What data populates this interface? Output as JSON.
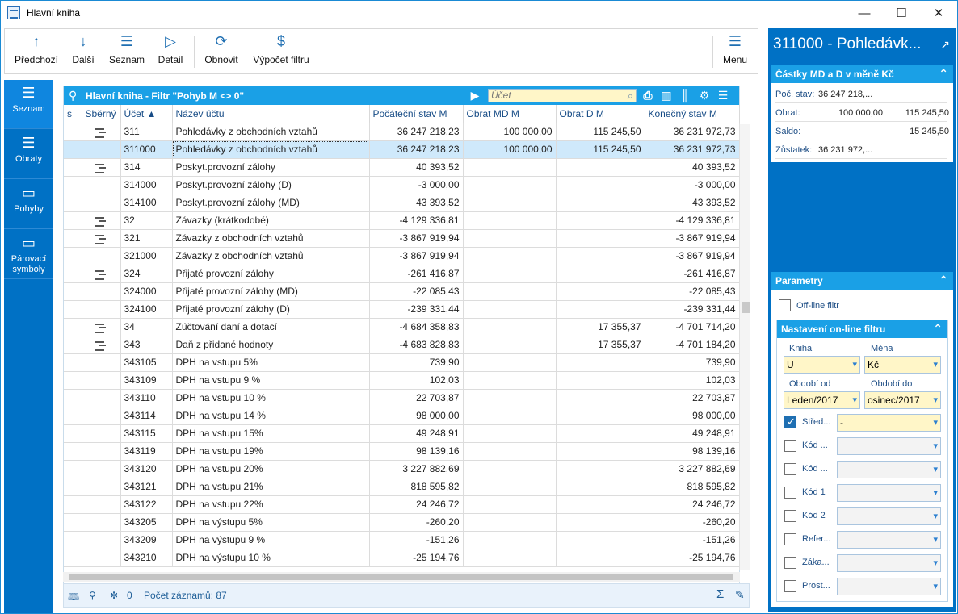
{
  "window": {
    "title": "Hlavní kniha",
    "minimize_icon": "minimize-icon",
    "maximize_icon": "maximize-icon",
    "close_icon": "close-icon"
  },
  "toolbar": {
    "items": [
      {
        "label": "Předchozí",
        "icon": "arrow-up-icon"
      },
      {
        "label": "Další",
        "icon": "arrow-down-icon"
      },
      {
        "label": "Seznam",
        "icon": "list-icon"
      },
      {
        "label": "Detail",
        "icon": "play-icon"
      },
      {
        "label": "Obnovit",
        "icon": "refresh-icon"
      },
      {
        "label": "Výpočet filtru",
        "icon": "calc-filter-icon"
      },
      {
        "label": "Menu",
        "icon": "menu-icon"
      }
    ]
  },
  "sidebar": {
    "items": [
      {
        "label": "Seznam",
        "icon": "list-icon"
      },
      {
        "label": "Obraty",
        "icon": "list-icon"
      },
      {
        "label": "Pohyby",
        "icon": "box-icon"
      },
      {
        "label": "Párovací symboly",
        "icon": "box-icon"
      }
    ]
  },
  "grid": {
    "title": "Hlavní kniha - Filtr \"Pohyb M <> 0\"",
    "search_placeholder": "Účet",
    "columns": [
      "s",
      "Sběrný",
      "Účet",
      "Název účtu",
      "Počáteční stav M",
      "Obrat MD M",
      "Obrat D M",
      "Konečný stav M"
    ],
    "rows": [
      {
        "s": "",
        "group": true,
        "ucet": "311",
        "nazev": "Pohledávky z obchodních vztahů",
        "poc": "36 247 218,23",
        "md": "100 000,00",
        "d": "115 245,50",
        "kon": "36 231 972,73"
      },
      {
        "s": "",
        "group": false,
        "ucet": "311000",
        "nazev": "Pohledávky z obchodních vztahů",
        "poc": "36 247 218,23",
        "md": "100 000,00",
        "d": "115 245,50",
        "kon": "36 231 972,73",
        "selected": true
      },
      {
        "s": "",
        "group": true,
        "ucet": "314",
        "nazev": "Poskyt.provozní zálohy",
        "poc": "40 393,52",
        "md": "",
        "d": "",
        "kon": "40 393,52"
      },
      {
        "s": "",
        "group": false,
        "ucet": "314000",
        "nazev": "Poskyt.provozní zálohy (D)",
        "poc": "-3 000,00",
        "md": "",
        "d": "",
        "kon": "-3 000,00"
      },
      {
        "s": "",
        "group": false,
        "ucet": "314100",
        "nazev": "Poskyt.provozní zálohy (MD)",
        "poc": "43 393,52",
        "md": "",
        "d": "",
        "kon": "43 393,52"
      },
      {
        "s": "",
        "group": true,
        "ucet": "32",
        "nazev": "Závazky (krátkodobé)",
        "poc": "-4 129 336,81",
        "md": "",
        "d": "",
        "kon": "-4 129 336,81"
      },
      {
        "s": "",
        "group": true,
        "ucet": "321",
        "nazev": "Závazky z obchodních vztahů",
        "poc": "-3 867 919,94",
        "md": "",
        "d": "",
        "kon": "-3 867 919,94"
      },
      {
        "s": "",
        "group": false,
        "ucet": "321000",
        "nazev": "Závazky z obchodních vztahů",
        "poc": "-3 867 919,94",
        "md": "",
        "d": "",
        "kon": "-3 867 919,94"
      },
      {
        "s": "",
        "group": true,
        "ucet": "324",
        "nazev": "Přijaté provozní zálohy",
        "poc": "-261 416,87",
        "md": "",
        "d": "",
        "kon": "-261 416,87"
      },
      {
        "s": "",
        "group": false,
        "ucet": "324000",
        "nazev": "Přijaté provozní zálohy (MD)",
        "poc": "-22 085,43",
        "md": "",
        "d": "",
        "kon": "-22 085,43"
      },
      {
        "s": "",
        "group": false,
        "ucet": "324100",
        "nazev": "Přijaté provozní zálohy (D)",
        "poc": "-239 331,44",
        "md": "",
        "d": "",
        "kon": "-239 331,44"
      },
      {
        "s": "",
        "group": true,
        "ucet": "34",
        "nazev": "Zúčtování daní a dotací",
        "poc": "-4 684 358,83",
        "md": "",
        "d": "17 355,37",
        "kon": "-4 701 714,20"
      },
      {
        "s": "",
        "group": true,
        "ucet": "343",
        "nazev": "Daň z přidané hodnoty",
        "poc": "-4 683 828,83",
        "md": "",
        "d": "17 355,37",
        "kon": "-4 701 184,20"
      },
      {
        "s": "",
        "group": false,
        "ucet": "343105",
        "nazev": "DPH na vstupu 5%",
        "poc": "739,90",
        "md": "",
        "d": "",
        "kon": "739,90"
      },
      {
        "s": "",
        "group": false,
        "ucet": "343109",
        "nazev": "DPH na vstupu 9 %",
        "poc": "102,03",
        "md": "",
        "d": "",
        "kon": "102,03"
      },
      {
        "s": "",
        "group": false,
        "ucet": "343110",
        "nazev": "DPH na vstupu 10 %",
        "poc": "22 703,87",
        "md": "",
        "d": "",
        "kon": "22 703,87"
      },
      {
        "s": "",
        "group": false,
        "ucet": "343114",
        "nazev": "DPH na vstupu 14 %",
        "poc": "98 000,00",
        "md": "",
        "d": "",
        "kon": "98 000,00"
      },
      {
        "s": "",
        "group": false,
        "ucet": "343115",
        "nazev": "DPH na vstupu 15%",
        "poc": "49 248,91",
        "md": "",
        "d": "",
        "kon": "49 248,91"
      },
      {
        "s": "",
        "group": false,
        "ucet": "343119",
        "nazev": "DPH na vstupu 19%",
        "poc": "98 139,16",
        "md": "",
        "d": "",
        "kon": "98 139,16"
      },
      {
        "s": "",
        "group": false,
        "ucet": "343120",
        "nazev": "DPH na vstupu 20%",
        "poc": "3 227 882,69",
        "md": "",
        "d": "",
        "kon": "3 227 882,69"
      },
      {
        "s": "",
        "group": false,
        "ucet": "343121",
        "nazev": "DPH na vstupu 21%",
        "poc": "818 595,82",
        "md": "",
        "d": "",
        "kon": "818 595,82"
      },
      {
        "s": "",
        "group": false,
        "ucet": "343122",
        "nazev": "DPH na vstupu 22%",
        "poc": "24 246,72",
        "md": "",
        "d": "",
        "kon": "24 246,72"
      },
      {
        "s": "",
        "group": false,
        "ucet": "343205",
        "nazev": "DPH na výstupu 5%",
        "poc": "-260,20",
        "md": "",
        "d": "",
        "kon": "-260,20"
      },
      {
        "s": "",
        "group": false,
        "ucet": "343209",
        "nazev": "DPH na výstupu 9 %",
        "poc": "-151,26",
        "md": "",
        "d": "",
        "kon": "-151,26"
      },
      {
        "s": "",
        "group": false,
        "ucet": "343210",
        "nazev": "DPH na výstupu 10 %",
        "poc": "-25 194,76",
        "md": "",
        "d": "",
        "kon": "-25 194,76"
      }
    ]
  },
  "status": {
    "count_label": "0",
    "records": "Počet záznamů: 87"
  },
  "right": {
    "title": "311000 - Pohledávk...",
    "amounts_title": "Částky MD a D v měně Kč",
    "amounts": [
      {
        "label": "Poč. stav:",
        "left": "36 247 218,...",
        "right": ""
      },
      {
        "label": "Obrat:",
        "left": "100 000,00",
        "right": "115 245,50"
      },
      {
        "label": "Saldo:",
        "left": "",
        "right": "15 245,50"
      },
      {
        "label": "Zůstatek:",
        "left": "36 231 972,...",
        "right": ""
      }
    ],
    "params_title": "Parametry",
    "offline": "Off-line filtr",
    "online_title": "Nastavení on-line filtru",
    "fields": {
      "kniha_label": "Kniha",
      "kniha": "U",
      "mena_label": "Měna",
      "mena": "Kč",
      "od_label": "Období od",
      "od": "Leden/2017",
      "do_label": "Období do",
      "do": "osinec/2017"
    },
    "checks": [
      {
        "label": "Střed...",
        "value": "-",
        "checked": true
      },
      {
        "label": "Kód ...",
        "value": "",
        "checked": false
      },
      {
        "label": "Kód ...",
        "value": "",
        "checked": false
      },
      {
        "label": "Kód 1",
        "value": "",
        "checked": false
      },
      {
        "label": "Kód 2",
        "value": "",
        "checked": false
      },
      {
        "label": "Refer...",
        "value": "",
        "checked": false
      },
      {
        "label": "Záka...",
        "value": "",
        "checked": false
      },
      {
        "label": "Prost...",
        "value": "",
        "checked": false
      }
    ]
  }
}
